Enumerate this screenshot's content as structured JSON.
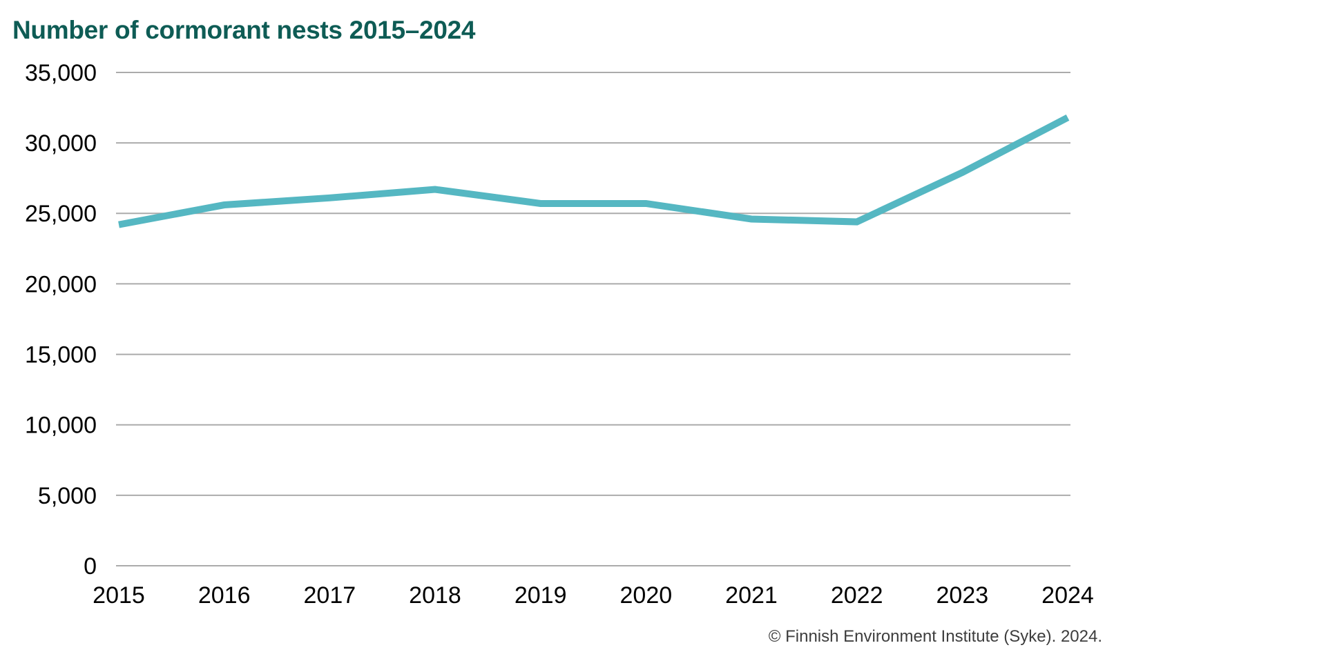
{
  "page": {
    "title": "Number of cormorant nests 2015–2024",
    "attribution": "© Finnish Environment Institute (Syke). 2024."
  },
  "colors": {
    "background": "#ffffff",
    "title": "#0e5c55",
    "line": "#55b7c2",
    "gridline": "#ababab",
    "axis_text": "#000000",
    "attribution_text": "#3d3d3d"
  },
  "chart_data": {
    "type": "line",
    "title": "Number of cormorant nests 2015–2024",
    "categories": [
      "2015",
      "2016",
      "2017",
      "2018",
      "2019",
      "2020",
      "2021",
      "2022",
      "2023",
      "2024"
    ],
    "values": [
      24200,
      25600,
      26100,
      26700,
      25700,
      25700,
      24600,
      24400,
      27900,
      31800
    ],
    "series_name": "Number of cormorant nests",
    "xlabel": "",
    "ylabel": "",
    "ylim": [
      0,
      35000
    ],
    "ytick_step": 5000,
    "yticks": [
      {
        "value": 0,
        "label": "0"
      },
      {
        "value": 5000,
        "label": "5,000"
      },
      {
        "value": 10000,
        "label": "10,000"
      },
      {
        "value": 15000,
        "label": "15,000"
      },
      {
        "value": 20000,
        "label": "20,000"
      },
      {
        "value": 25000,
        "label": "25,000"
      },
      {
        "value": 30000,
        "label": "30,000"
      },
      {
        "value": 35000,
        "label": "35,000"
      }
    ],
    "grid": "horizontal-only",
    "legend": "none",
    "markers": "none"
  }
}
